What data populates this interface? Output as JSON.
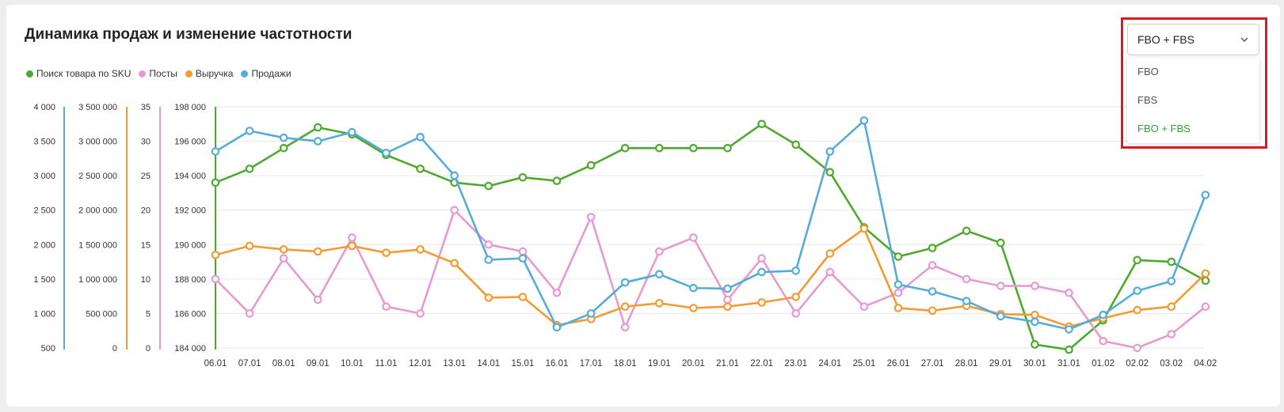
{
  "title": "Динамика продаж и изменение частотности",
  "dropdown": {
    "selected": "FBO + FBS",
    "options": [
      "FBO",
      "FBS",
      "FBO + FBS"
    ],
    "highlight_color": "#e2161e"
  },
  "chart_data": {
    "type": "line",
    "categories": [
      "06.01",
      "07.01",
      "08.01",
      "09.01",
      "10.01",
      "11.01",
      "12.01",
      "13.01",
      "14.01",
      "15.01",
      "16.01",
      "17.01",
      "18.01",
      "19.01",
      "20.01",
      "21.01",
      "22.01",
      "23.01",
      "24.01",
      "25.01",
      "26.01",
      "27.01",
      "28.01",
      "29.01",
      "30.01",
      "31.01",
      "01.02",
      "02.02",
      "03.02",
      "04.02"
    ],
    "legend_position": "top-left",
    "grid": true,
    "axes": [
      {
        "id": "sales",
        "range": [
          500,
          4000
        ],
        "ticks": [
          "500",
          "1 000",
          "1 500",
          "2 000",
          "2 500",
          "3 000",
          "3 500",
          "4 000"
        ],
        "color": "#55acd9"
      },
      {
        "id": "revenue",
        "range": [
          0,
          3500000
        ],
        "ticks": [
          "0",
          "500 000",
          "1 000 000",
          "1 500 000",
          "2 000 000",
          "2 500 000",
          "3 000 000",
          "3 500 000"
        ],
        "color": "#f49a33"
      },
      {
        "id": "posts",
        "range": [
          0,
          35
        ],
        "ticks": [
          "0",
          "5",
          "10",
          "15",
          "20",
          "25",
          "30",
          "35"
        ],
        "color": "#e79ad2"
      },
      {
        "id": "search",
        "range": [
          184000,
          198000
        ],
        "ticks": [
          "184 000",
          "186 000",
          "188 000",
          "190 000",
          "192 000",
          "194 000",
          "196 000",
          "198 000"
        ],
        "color": "#4daa2e"
      }
    ],
    "series": [
      {
        "name": "Поиск товара по SKU",
        "axis": "search",
        "color": "#4daa2e",
        "values": [
          193600,
          194400,
          195600,
          196800,
          196400,
          195200,
          194400,
          193600,
          193400,
          193900,
          193700,
          194600,
          195600,
          195600,
          195600,
          195600,
          197000,
          195800,
          194200,
          191000,
          189300,
          189800,
          190800,
          190100,
          184200,
          183900,
          185600,
          189100,
          189000,
          187900
        ]
      },
      {
        "name": "Посты",
        "axis": "posts",
        "color": "#e79ad2",
        "values": [
          10,
          5,
          13,
          7,
          16,
          6,
          5,
          20,
          15,
          14,
          8,
          19,
          3,
          14,
          16,
          7,
          13,
          5,
          11,
          6,
          8,
          12,
          10,
          9,
          9,
          8,
          1,
          0,
          2,
          6
        ]
      },
      {
        "name": "Выручка",
        "axis": "revenue",
        "color": "#f49a33",
        "values": [
          1350000,
          1480000,
          1430000,
          1400000,
          1480000,
          1380000,
          1430000,
          1230000,
          730000,
          740000,
          330000,
          420000,
          600000,
          650000,
          580000,
          600000,
          660000,
          740000,
          1370000,
          1730000,
          580000,
          540000,
          610000,
          490000,
          480000,
          310000,
          430000,
          550000,
          600000,
          1080000
        ]
      },
      {
        "name": "Продажи",
        "axis": "sales",
        "color": "#55acd9",
        "values": [
          3350,
          3650,
          3550,
          3500,
          3630,
          3330,
          3560,
          3000,
          1780,
          1800,
          800,
          1000,
          1450,
          1570,
          1370,
          1360,
          1600,
          1620,
          3350,
          3800,
          1420,
          1320,
          1180,
          960,
          880,
          770,
          980,
          1330,
          1470,
          2720
        ]
      }
    ]
  }
}
